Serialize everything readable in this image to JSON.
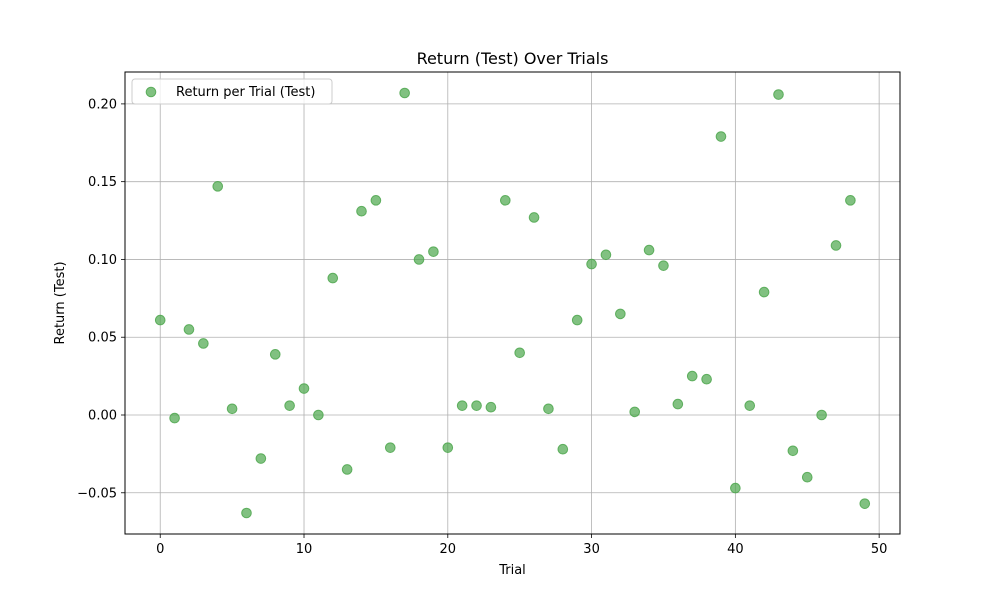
{
  "chart_data": {
    "type": "scatter",
    "title": "Return (Test) Over Trials",
    "xlabel": "Trial",
    "ylabel": "Return (Test)",
    "xlim": [
      -2.45,
      51.45
    ],
    "ylim": [
      -0.0765,
      0.2205
    ],
    "xticks": [
      0,
      10,
      20,
      30,
      40,
      50
    ],
    "xtick_labels": [
      "0",
      "10",
      "20",
      "30",
      "40",
      "50"
    ],
    "yticks": [
      -0.05,
      0.0,
      0.05,
      0.1,
      0.15,
      0.2
    ],
    "ytick_labels": [
      "−0.05",
      "0.00",
      "0.05",
      "0.10",
      "0.15",
      "0.20"
    ],
    "grid": true,
    "legend_position": "top-left",
    "marker_color": "#4ca64c",
    "series": [
      {
        "name": "Return per Trial (Test)",
        "color": "#4ca64c",
        "points": [
          {
            "x": 0,
            "y": 0.061
          },
          {
            "x": 1,
            "y": -0.002
          },
          {
            "x": 2,
            "y": 0.055
          },
          {
            "x": 3,
            "y": 0.046
          },
          {
            "x": 4,
            "y": 0.147
          },
          {
            "x": 5,
            "y": 0.004
          },
          {
            "x": 6,
            "y": -0.063
          },
          {
            "x": 7,
            "y": -0.028
          },
          {
            "x": 8,
            "y": 0.039
          },
          {
            "x": 9,
            "y": 0.006
          },
          {
            "x": 10,
            "y": 0.017
          },
          {
            "x": 11,
            "y": 0.0
          },
          {
            "x": 12,
            "y": 0.088
          },
          {
            "x": 13,
            "y": -0.035
          },
          {
            "x": 14,
            "y": 0.131
          },
          {
            "x": 15,
            "y": 0.138
          },
          {
            "x": 16,
            "y": -0.021
          },
          {
            "x": 17,
            "y": 0.207
          },
          {
            "x": 18,
            "y": 0.1
          },
          {
            "x": 19,
            "y": 0.105
          },
          {
            "x": 20,
            "y": -0.021
          },
          {
            "x": 21,
            "y": 0.006
          },
          {
            "x": 22,
            "y": 0.006
          },
          {
            "x": 23,
            "y": 0.005
          },
          {
            "x": 24,
            "y": 0.138
          },
          {
            "x": 25,
            "y": 0.04
          },
          {
            "x": 26,
            "y": 0.127
          },
          {
            "x": 27,
            "y": 0.004
          },
          {
            "x": 28,
            "y": -0.022
          },
          {
            "x": 29,
            "y": 0.061
          },
          {
            "x": 30,
            "y": 0.097
          },
          {
            "x": 31,
            "y": 0.103
          },
          {
            "x": 32,
            "y": 0.065
          },
          {
            "x": 33,
            "y": 0.002
          },
          {
            "x": 34,
            "y": 0.106
          },
          {
            "x": 35,
            "y": 0.096
          },
          {
            "x": 36,
            "y": 0.007
          },
          {
            "x": 37,
            "y": 0.025
          },
          {
            "x": 38,
            "y": 0.023
          },
          {
            "x": 39,
            "y": 0.179
          },
          {
            "x": 40,
            "y": -0.047
          },
          {
            "x": 41,
            "y": 0.006
          },
          {
            "x": 42,
            "y": 0.079
          },
          {
            "x": 43,
            "y": 0.206
          },
          {
            "x": 44,
            "y": -0.023
          },
          {
            "x": 45,
            "y": -0.04
          },
          {
            "x": 46,
            "y": 0.0
          },
          {
            "x": 47,
            "y": 0.109
          },
          {
            "x": 48,
            "y": 0.138
          },
          {
            "x": 49,
            "y": -0.057
          }
        ]
      }
    ]
  }
}
